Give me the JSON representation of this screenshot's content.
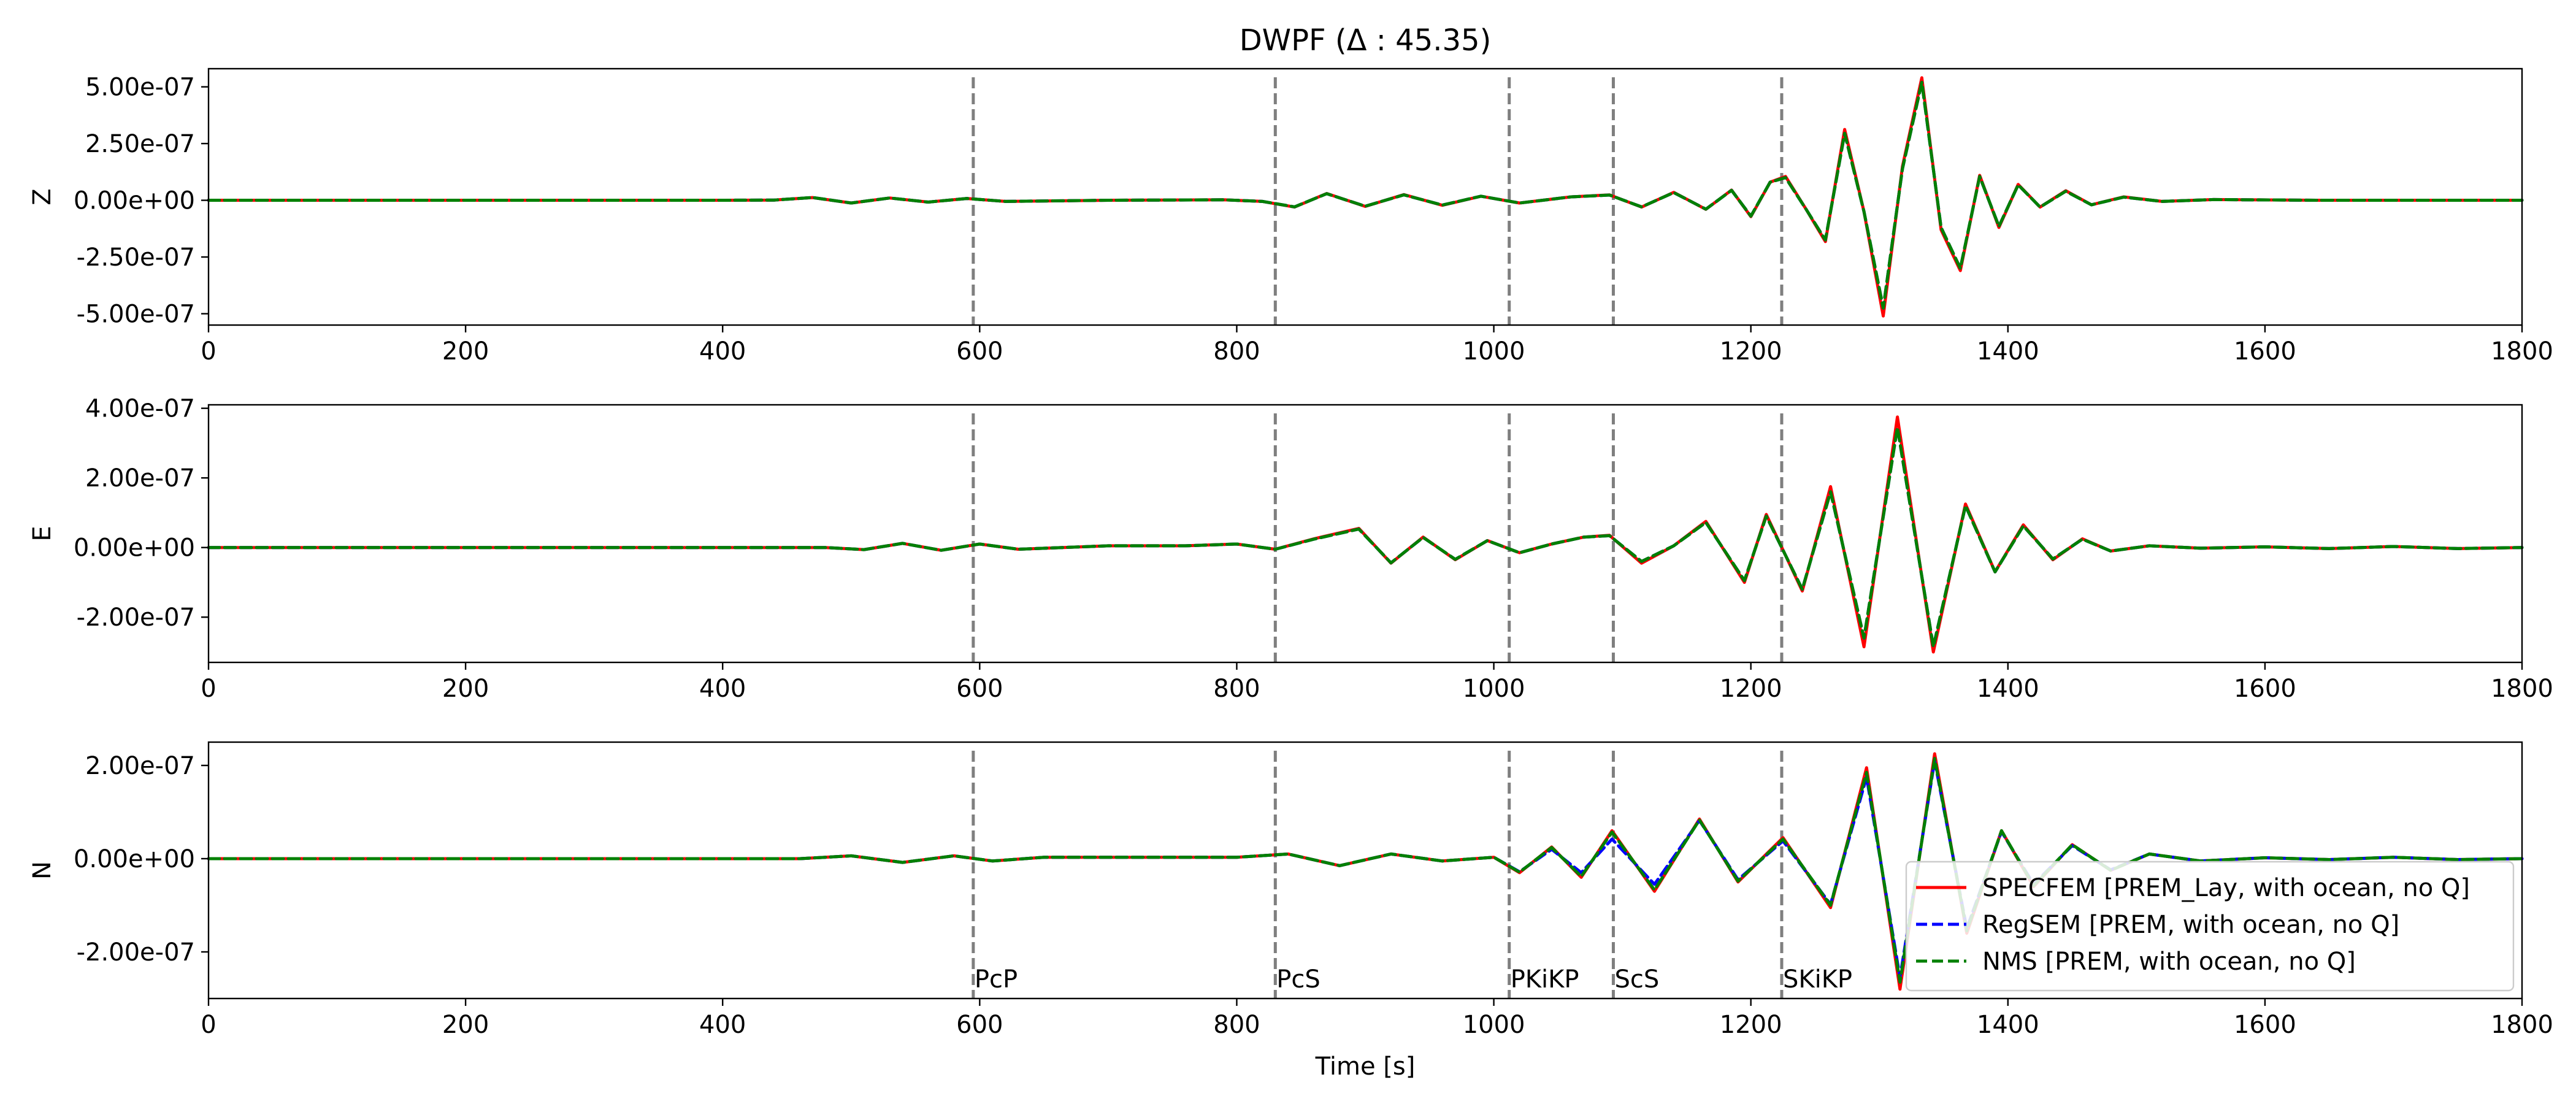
{
  "figure": {
    "title": "DWPF (Δ : 45.35)"
  },
  "chart_data": {
    "type": "line",
    "title": "DWPF (Δ : 45.35)",
    "xlabel": "Time [s]",
    "xlim": [
      0,
      1800
    ],
    "x_ticks": [
      0,
      200,
      400,
      600,
      800,
      1000,
      1200,
      1400,
      1600,
      1800
    ],
    "legend_placement": "lower-right",
    "phases": [
      {
        "name": "PcP",
        "time": 595
      },
      {
        "name": "PcS",
        "time": 830
      },
      {
        "name": "PKiKP",
        "time": 1012
      },
      {
        "name": "ScS",
        "time": 1093
      },
      {
        "name": "SKiKP",
        "time": 1224
      }
    ],
    "series_styles": [
      {
        "name": "SPECFEM [PREM_Lay, with ocean, no Q]",
        "color": "#ff0000",
        "dash": "solid"
      },
      {
        "name": "RegSEM [PREM, with ocean, no Q]",
        "color": "#0000ff",
        "dash": "dashed"
      },
      {
        "name": "NMS [PREM, with ocean, no Q]",
        "color": "#008000",
        "dash": "dashed"
      }
    ],
    "panels": [
      {
        "ylabel": "Z",
        "ylim": [
          -5.5e-07,
          5.8e-07
        ],
        "y_ticks": [
          {
            "value": 5e-07,
            "label": "5.00e-07"
          },
          {
            "value": 2.5e-07,
            "label": "2.50e-07"
          },
          {
            "value": 0,
            "label": "0.00e+00"
          },
          {
            "value": -2.5e-07,
            "label": "-2.50e-07"
          },
          {
            "value": -5e-07,
            "label": "-5.00e-07"
          }
        ],
        "x": [
          0,
          400,
          440,
          470,
          500,
          530,
          560,
          590,
          620,
          700,
          790,
          820,
          845,
          870,
          900,
          930,
          960,
          990,
          1020,
          1060,
          1090,
          1115,
          1140,
          1165,
          1185,
          1200,
          1215,
          1227,
          1243,
          1258,
          1273,
          1288,
          1303,
          1318,
          1333,
          1348,
          1363,
          1378,
          1393,
          1408,
          1425,
          1445,
          1465,
          1490,
          1520,
          1560,
          1640,
          1800
        ],
        "series": [
          {
            "name": "SPECFEM [PREM_Lay, with ocean, no Q]",
            "values": [
              0,
              0,
              1e-09,
              1.2e-08,
              -1.2e-08,
              1e-08,
              -8e-09,
              8e-09,
              -5e-09,
              0,
              2e-09,
              -5e-09,
              -3e-08,
              3e-08,
              -2.7e-08,
              2.5e-08,
              -2.2e-08,
              1.8e-08,
              -1.2e-08,
              1.5e-08,
              2.4e-08,
              -3e-08,
              3.5e-08,
              -4e-08,
              4.5e-08,
              -7.2e-08,
              8e-08,
              1.05e-07,
              -4e-08,
              -1.82e-07,
              3.12e-07,
              -5e-08,
              -5.1e-07,
              1.5e-07,
              5.4e-07,
              -1.3e-07,
              -3.1e-07,
              1.1e-07,
              -1.2e-07,
              7e-08,
              -3e-08,
              4.2e-08,
              -2e-08,
              1.5e-08,
              -5e-09,
              3e-09,
              0,
              0
            ]
          },
          {
            "name": "RegSEM [PREM, with ocean, no Q]",
            "values": [
              0,
              0,
              1e-09,
              1.2e-08,
              -1.2e-08,
              1e-08,
              -8e-09,
              8e-09,
              -5e-09,
              0,
              2e-09,
              -5e-09,
              -2.9e-08,
              2.9e-08,
              -2.6e-08,
              2.4e-08,
              -2.1e-08,
              1.8e-08,
              -1.2e-08,
              1.5e-08,
              2.3e-08,
              -2.9e-08,
              3.4e-08,
              -3.9e-08,
              4.4e-08,
              -7e-08,
              8e-08,
              1e-07,
              -4e-08,
              -1.75e-07,
              2.95e-07,
              -5e-08,
              -4.75e-07,
              1.4e-07,
              5.2e-07,
              -1.2e-07,
              -3e-07,
              1.05e-07,
              -1.15e-07,
              6.8e-08,
              -3e-08,
              4e-08,
              -2e-08,
              1.4e-08,
              -5e-09,
              3e-09,
              0,
              0
            ]
          },
          {
            "name": "NMS [PREM, with ocean, no Q]",
            "values": [
              0,
              0,
              1e-09,
              1.2e-08,
              -1.2e-08,
              1e-08,
              -8e-09,
              8e-09,
              -5e-09,
              0,
              2e-09,
              -5e-09,
              -2.9e-08,
              2.9e-08,
              -2.6e-08,
              2.4e-08,
              -2.1e-08,
              1.8e-08,
              -1.2e-08,
              1.5e-08,
              2.3e-08,
              -2.9e-08,
              3.4e-08,
              -3.9e-08,
              4.4e-08,
              -7e-08,
              8e-08,
              1e-07,
              -4e-08,
              -1.75e-07,
              2.95e-07,
              -5e-08,
              -4.75e-07,
              1.4e-07,
              5.2e-07,
              -1.2e-07,
              -3e-07,
              1.05e-07,
              -1.15e-07,
              6.8e-08,
              -3e-08,
              4e-08,
              -2e-08,
              1.4e-08,
              -5e-09,
              3e-09,
              0,
              0
            ]
          }
        ]
      },
      {
        "ylabel": "E",
        "ylim": [
          -3.3e-07,
          4.1e-07
        ],
        "y_ticks": [
          {
            "value": 4e-07,
            "label": "4.00e-07"
          },
          {
            "value": 2e-07,
            "label": "2.00e-07"
          },
          {
            "value": 0,
            "label": "0.00e+00"
          },
          {
            "value": -2e-07,
            "label": "-2.00e-07"
          }
        ],
        "x": [
          0,
          480,
          510,
          540,
          570,
          600,
          630,
          700,
          760,
          800,
          830,
          860,
          895,
          920,
          945,
          970,
          995,
          1020,
          1045,
          1070,
          1090,
          1115,
          1140,
          1165,
          1195,
          1212,
          1240,
          1262,
          1288,
          1314,
          1342,
          1367,
          1390,
          1412,
          1435,
          1458,
          1480,
          1510,
          1550,
          1600,
          1650,
          1700,
          1750,
          1800
        ],
        "series": [
          {
            "name": "SPECFEM [PREM_Lay, with ocean, no Q]",
            "values": [
              0,
              0,
              -6e-09,
              1.2e-08,
              -8e-09,
              1e-08,
              -5e-09,
              5e-09,
              5e-09,
              1e-08,
              -5e-09,
              2.5e-08,
              5.5e-08,
              -4.5e-08,
              3e-08,
              -3.5e-08,
              2e-08,
              -1.5e-08,
              1e-08,
              3e-08,
              3.5e-08,
              -4.5e-08,
              5e-09,
              7.5e-08,
              -1e-07,
              9.5e-08,
              -1.25e-07,
              1.75e-07,
              -2.85e-07,
              3.75e-07,
              -3e-07,
              1.25e-07,
              -7e-08,
              6.5e-08,
              -3.5e-08,
              2.5e-08,
              -1e-08,
              5e-09,
              -2e-09,
              2e-09,
              -3e-09,
              3e-09,
              -3e-09,
              0
            ]
          },
          {
            "name": "RegSEM [PREM, with ocean, no Q]",
            "values": [
              0,
              0,
              -6e-09,
              1.2e-08,
              -8e-09,
              1e-08,
              -5e-09,
              5e-09,
              5e-09,
              1e-08,
              -5e-09,
              2.4e-08,
              5.3e-08,
              -4.4e-08,
              2.9e-08,
              -3.4e-08,
              2e-08,
              -1.5e-08,
              1e-08,
              3e-08,
              3.4e-08,
              -4e-08,
              5e-09,
              7.2e-08,
              -9.5e-08,
              9e-08,
              -1.2e-07,
              1.6e-07,
              -2.6e-07,
              3.45e-07,
              -2.85e-07,
              1.2e-07,
              -7e-08,
              6.2e-08,
              -3.3e-08,
              2.4e-08,
              -1e-08,
              5e-09,
              -2e-09,
              2e-09,
              -3e-09,
              3e-09,
              -3e-09,
              0
            ]
          },
          {
            "name": "NMS [PREM, with ocean, no Q]",
            "values": [
              0,
              0,
              -6e-09,
              1.2e-08,
              -8e-09,
              1e-08,
              -5e-09,
              5e-09,
              5e-09,
              1e-08,
              -5e-09,
              2.4e-08,
              5.3e-08,
              -4.4e-08,
              2.9e-08,
              -3.4e-08,
              2e-08,
              -1.5e-08,
              1e-08,
              3e-08,
              3.4e-08,
              -4e-08,
              5e-09,
              7.2e-08,
              -9.5e-08,
              9e-08,
              -1.2e-07,
              1.6e-07,
              -2.6e-07,
              3.45e-07,
              -2.85e-07,
              1.2e-07,
              -7e-08,
              6.2e-08,
              -3.3e-08,
              2.4e-08,
              -1e-08,
              5e-09,
              -2e-09,
              2e-09,
              -3e-09,
              3e-09,
              -3e-09,
              0
            ]
          }
        ]
      },
      {
        "ylabel": "N",
        "ylim": [
          -3e-07,
          2.5e-07
        ],
        "y_ticks": [
          {
            "value": 2e-07,
            "label": "2.00e-07"
          },
          {
            "value": 0,
            "label": "0.00e+00"
          },
          {
            "value": -2e-07,
            "label": "-2.00e-07"
          }
        ],
        "x": [
          0,
          460,
          500,
          540,
          580,
          610,
          650,
          800,
          840,
          880,
          920,
          960,
          1000,
          1020,
          1045,
          1068,
          1092,
          1125,
          1160,
          1190,
          1225,
          1262,
          1290,
          1316,
          1343,
          1368,
          1395,
          1420,
          1450,
          1480,
          1510,
          1550,
          1600,
          1650,
          1700,
          1750,
          1800
        ],
        "series": [
          {
            "name": "SPECFEM [PREM_Lay, with ocean, no Q]",
            "values": [
              0,
              0,
              6e-09,
              -8e-09,
              6e-09,
              -5e-09,
              3e-09,
              3e-09,
              1e-08,
              -1.5e-08,
              1e-08,
              -5e-09,
              3e-09,
              -3e-08,
              2.5e-08,
              -4e-08,
              6e-08,
              -7e-08,
              8.5e-08,
              -5e-08,
              4.5e-08,
              -1.05e-07,
              1.95e-07,
              -2.8e-07,
              2.25e-07,
              -1.6e-07,
              6e-08,
              -6e-08,
              3e-08,
              -2.5e-08,
              1e-08,
              -5e-09,
              2e-09,
              -2e-09,
              3e-09,
              -2e-09,
              0
            ]
          },
          {
            "name": "RegSEM [PREM, with ocean, no Q]",
            "values": [
              0,
              0,
              6e-09,
              -8e-09,
              6e-09,
              -5e-09,
              3e-09,
              3e-09,
              1e-08,
              -1.5e-08,
              1e-08,
              -5e-09,
              3e-09,
              -2.8e-08,
              2e-08,
              -3e-08,
              4.2e-08,
              -5.5e-08,
              8.2e-08,
              -4.5e-08,
              3.8e-08,
              -9.8e-08,
              1.75e-07,
              -2.55e-07,
              2.1e-07,
              -1.5e-07,
              5.8e-08,
              -5.5e-08,
              2.8e-08,
              -2.4e-08,
              1e-08,
              -5e-09,
              2e-09,
              -2e-09,
              3e-09,
              -2e-09,
              0
            ]
          },
          {
            "name": "NMS [PREM, with ocean, no Q]",
            "values": [
              0,
              0,
              6e-09,
              -8e-09,
              6e-09,
              -5e-09,
              3e-09,
              3e-09,
              1e-08,
              -1.5e-08,
              1e-08,
              -5e-09,
              3e-09,
              -2.9e-08,
              2.4e-08,
              -3.8e-08,
              5.7e-08,
              -6.7e-08,
              8.3e-08,
              -4.8e-08,
              4.2e-08,
              -1e-07,
              1.85e-07,
              -2.65e-07,
              2.15e-07,
              -1.55e-07,
              6e-08,
              -5.8e-08,
              3e-08,
              -2.5e-08,
              1e-08,
              -5e-09,
              2e-09,
              -2e-09,
              3e-09,
              -2e-09,
              0
            ]
          }
        ]
      }
    ]
  }
}
